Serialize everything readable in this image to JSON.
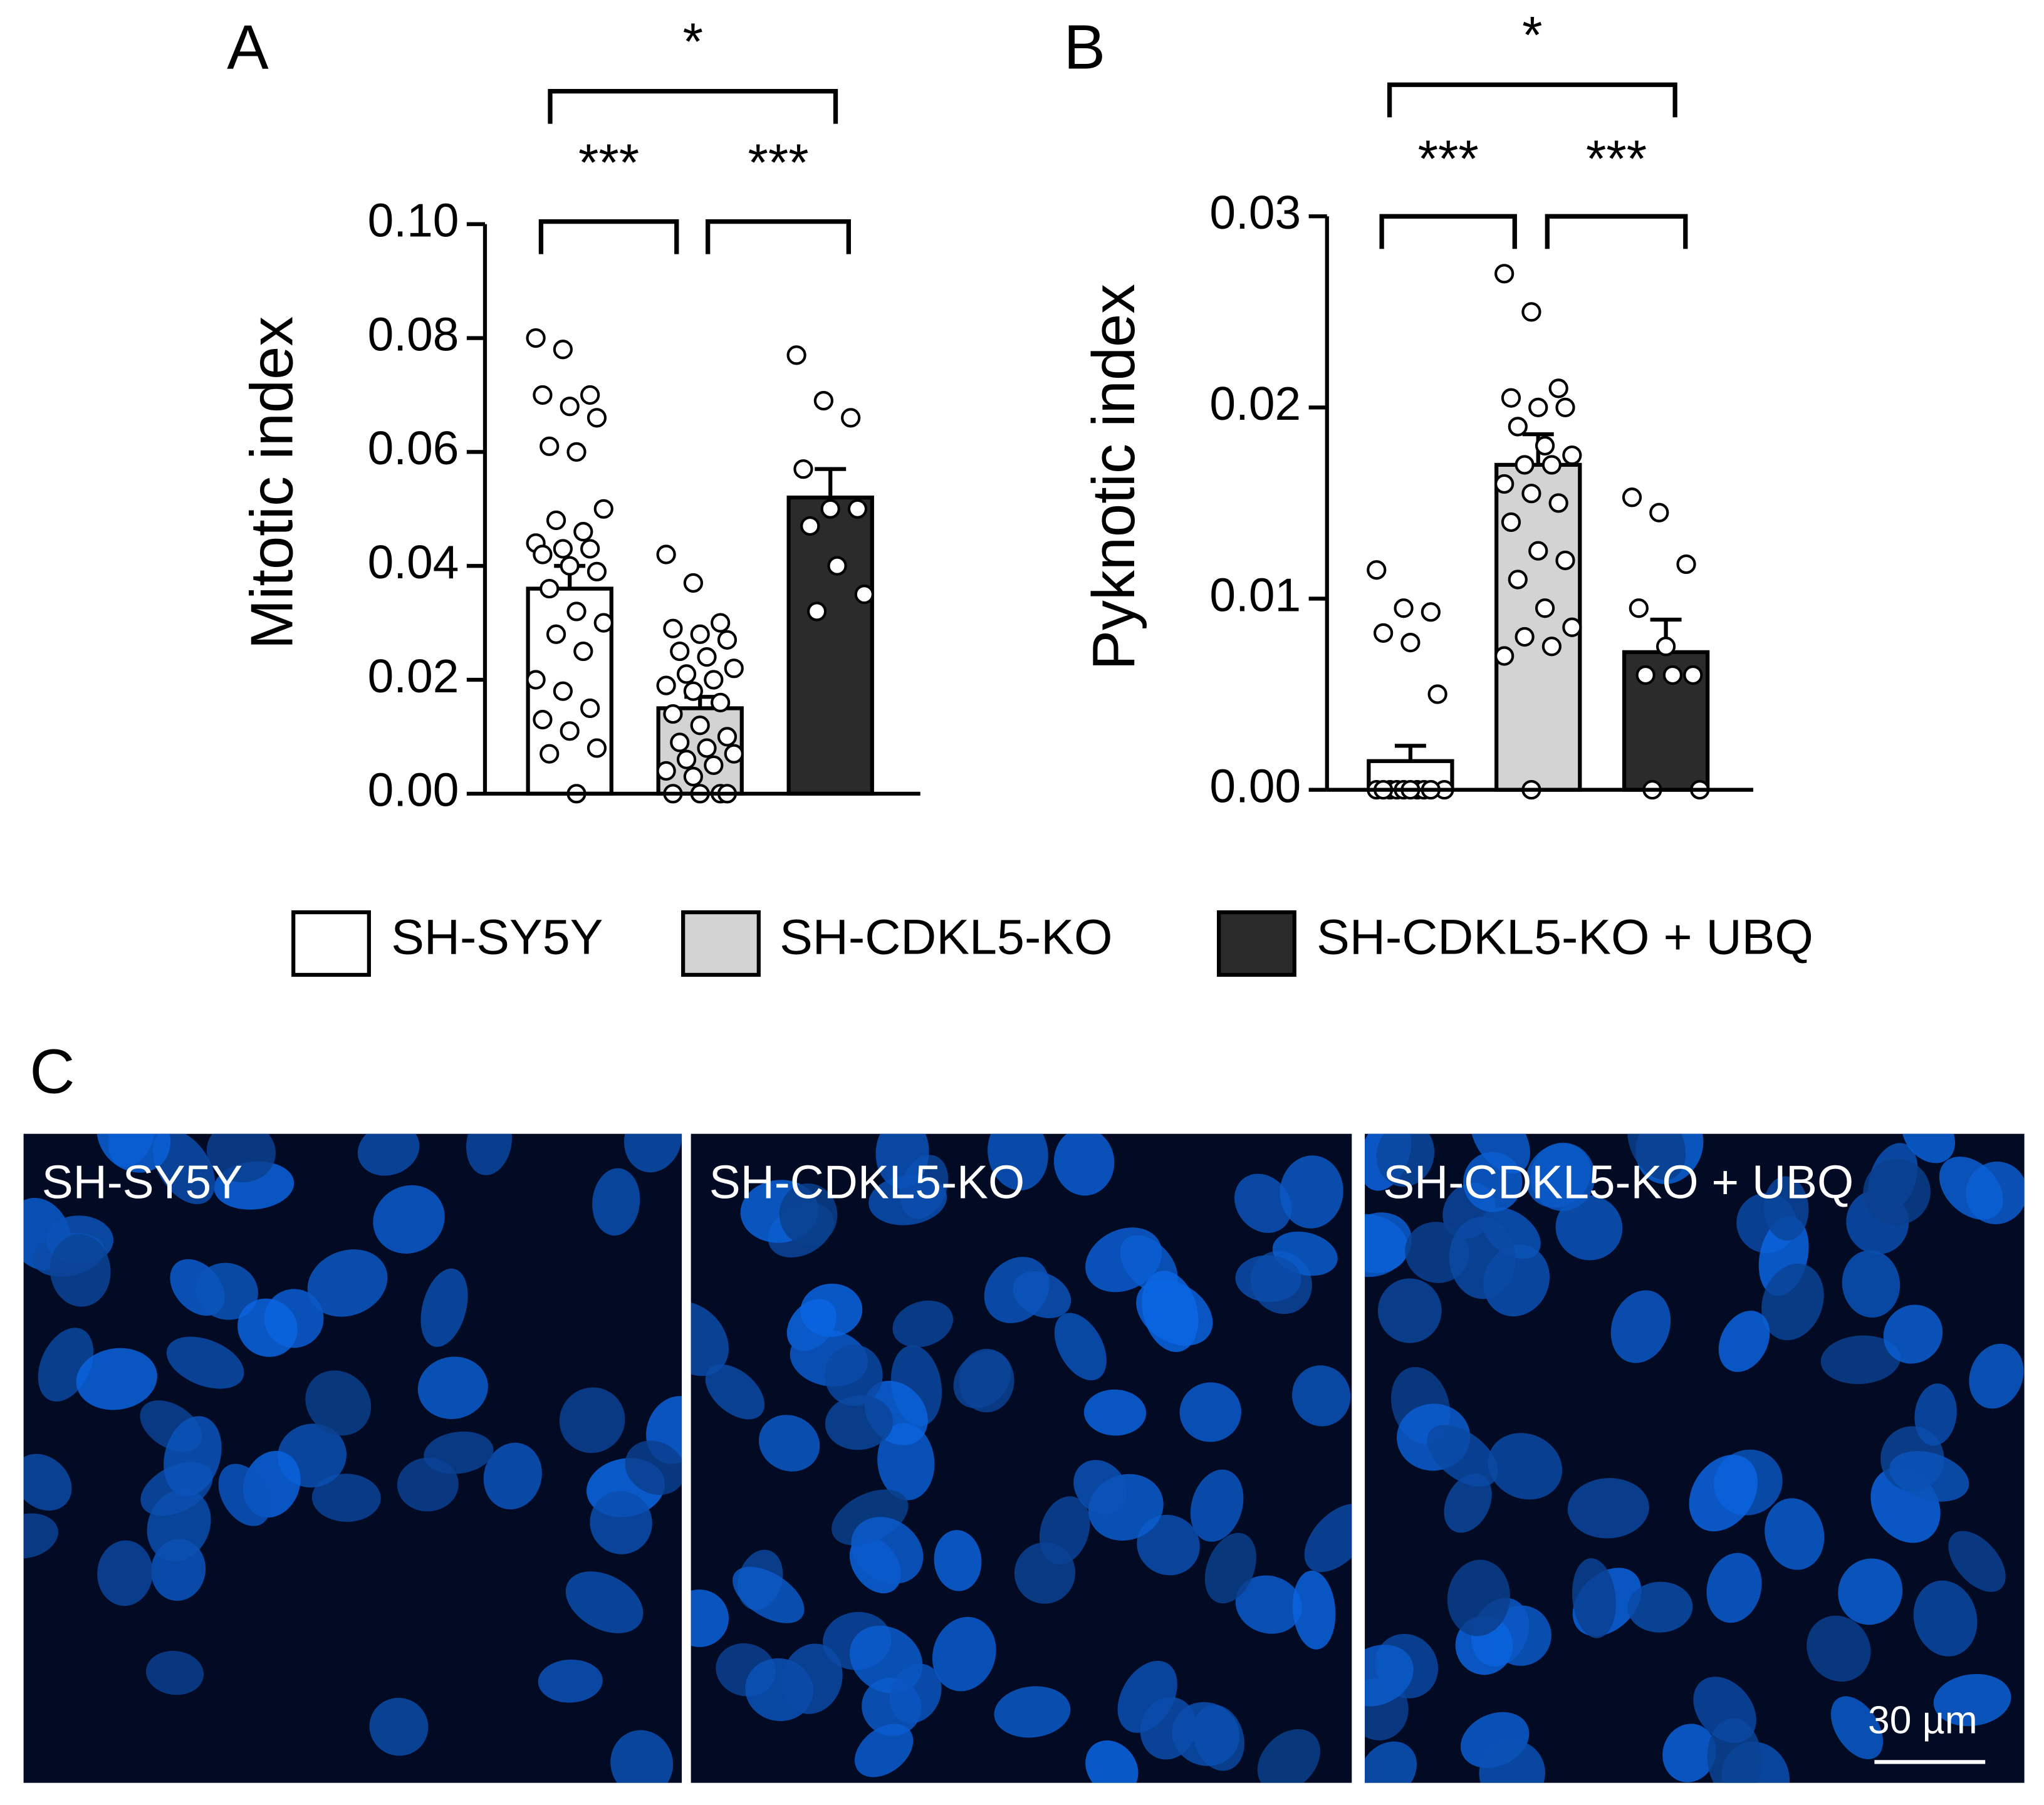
{
  "panels": [
    "A",
    "B",
    "C"
  ],
  "legend": [
    "SH-SY5Y",
    "SH-CDKL5-KO",
    "SH-CDKL5-KO + UBQ"
  ],
  "chart_data": [
    {
      "type": "bar",
      "ylabel": "Mitotic index",
      "values": [
        0.036,
        0.015,
        0.052
      ],
      "errors": [
        0.004,
        0.002,
        0.005
      ],
      "colors": [
        "#ffffff",
        "#d3d3d3",
        "#2b2b2b"
      ],
      "points": [
        [
          0.08,
          0.078,
          0.07,
          0.07,
          0.068,
          0.066,
          0.061,
          0.06,
          0.05,
          0.048,
          0.046,
          0.044,
          0.043,
          0.043,
          0.042,
          0.04,
          0.039,
          0.036,
          0.032,
          0.03,
          0.028,
          0.025,
          0.02,
          0.018,
          0.015,
          0.013,
          0.011,
          0.008,
          0.007,
          0
        ],
        [
          0.042,
          0.037,
          0.03,
          0.029,
          0.028,
          0.027,
          0.025,
          0.024,
          0.022,
          0.021,
          0.02,
          0.019,
          0.018,
          0.016,
          0.014,
          0.012,
          0.01,
          0.009,
          0.008,
          0.007,
          0.006,
          0.005,
          0.004,
          0.003,
          0,
          0,
          0,
          0
        ],
        [
          0.077,
          0.069,
          0.066,
          0.057,
          0.05,
          0.05,
          0.047,
          0.04,
          0.035,
          0.032
        ]
      ],
      "ylim": [
        0,
        0.1
      ],
      "yticks": [
        {
          "value": 0,
          "label": "0.00"
        },
        {
          "value": 0.02,
          "label": "0.02"
        },
        {
          "value": 0.04,
          "label": "0.04"
        },
        {
          "value": 0.06,
          "label": "0.06"
        },
        {
          "value": 0.08,
          "label": "0.08"
        },
        {
          "value": 0.1,
          "label": "0.10"
        }
      ],
      "annotations": [
        "***",
        "***",
        "*"
      ]
    },
    {
      "type": "bar",
      "ylabel": "Pyknotic index",
      "values": [
        0.0015,
        0.017,
        0.0072
      ],
      "errors": [
        0.0008,
        0.0016,
        0.0017
      ],
      "colors": [
        "#ffffff",
        "#d3d3d3",
        "#2b2b2b"
      ],
      "points": [
        [
          0.0115,
          0.0095,
          0.0093,
          0.0082,
          0.0077,
          0.005,
          0,
          0,
          0,
          0,
          0,
          0,
          0,
          0,
          0,
          0
        ],
        [
          0.027,
          0.025,
          0.021,
          0.0205,
          0.02,
          0.02,
          0.019,
          0.018,
          0.0175,
          0.017,
          0.017,
          0.016,
          0.0155,
          0.015,
          0.014,
          0.0125,
          0.012,
          0.011,
          0.0095,
          0.0085,
          0.008,
          0.0075,
          0.007,
          0
        ],
        [
          0.0153,
          0.0145,
          0.0118,
          0.0095,
          0.0075,
          0.006,
          0.006,
          0.006,
          0,
          0
        ]
      ],
      "ylim": [
        0,
        0.03
      ],
      "yticks": [
        {
          "value": 0,
          "label": "0.00"
        },
        0.01,
        0.02,
        0.03
      ],
      "annotations": [
        "***",
        "***",
        "*"
      ]
    }
  ],
  "images": [
    "SH-SY5Y",
    "SH-CDKL5-KO",
    "SH-CDKL5-KO + UBQ"
  ],
  "scale_bar": "30 µm"
}
